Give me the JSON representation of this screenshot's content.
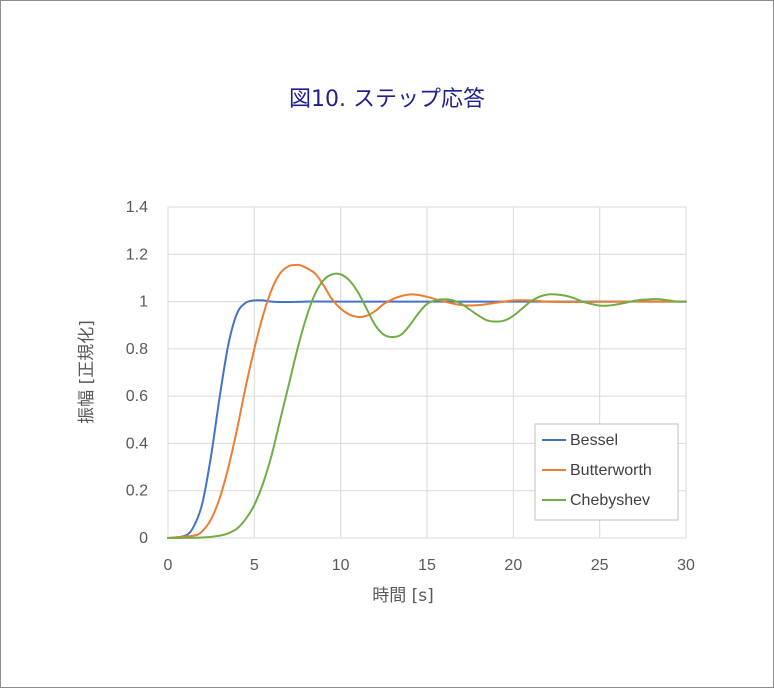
{
  "chart_data": {
    "type": "line",
    "title": "図10. ステップ応答",
    "xlabel": "時間 [s]",
    "ylabel": "振幅 [正規化]",
    "xlim": [
      0,
      30
    ],
    "ylim": [
      0,
      1.4
    ],
    "xticks": [
      0,
      5,
      10,
      15,
      20,
      25,
      30
    ],
    "yticks": [
      0,
      0.2,
      0.4,
      0.6,
      0.8,
      1,
      1.2,
      1.4
    ],
    "grid": true,
    "legend_position": "bottom-right",
    "series": [
      {
        "name": "Bessel",
        "color": "#4472c4",
        "x": [
          0,
          1,
          1.5,
          2,
          2.5,
          3,
          3.5,
          4,
          4.5,
          5,
          5.5,
          6,
          7,
          8,
          10,
          15,
          20,
          25,
          30
        ],
        "y": [
          0,
          0.01,
          0.05,
          0.15,
          0.35,
          0.6,
          0.82,
          0.95,
          0.995,
          1.005,
          1.005,
          1.0,
          0.998,
          1.0,
          1.0,
          1.0,
          1.0,
          1.0,
          1.0
        ]
      },
      {
        "name": "Butterworth",
        "color": "#ed7d31",
        "x": [
          0,
          1.5,
          2,
          2.5,
          3,
          3.5,
          4,
          4.5,
          5,
          5.5,
          6,
          6.5,
          7,
          7.5,
          7.8,
          8.5,
          9,
          9.5,
          10,
          10.5,
          11,
          11.5,
          12,
          12.5,
          13,
          13.5,
          14,
          14.5,
          15,
          15.5,
          16,
          17,
          18,
          19,
          20,
          21,
          22,
          24,
          26,
          28,
          30
        ],
        "y": [
          0,
          0.01,
          0.03,
          0.08,
          0.17,
          0.3,
          0.46,
          0.64,
          0.8,
          0.94,
          1.05,
          1.12,
          1.15,
          1.155,
          1.15,
          1.12,
          1.07,
          1.01,
          0.97,
          0.945,
          0.935,
          0.94,
          0.96,
          0.99,
          1.01,
          1.023,
          1.03,
          1.028,
          1.02,
          1.01,
          1.0,
          0.985,
          0.985,
          0.995,
          1.005,
          1.005,
          1.0,
          0.998,
          1.0,
          1.0,
          1.0
        ]
      },
      {
        "name": "Chebyshev",
        "color": "#70ad47",
        "x": [
          0,
          2,
          3,
          3.5,
          4,
          4.5,
          5,
          5.5,
          6,
          6.5,
          7,
          7.5,
          8,
          8.5,
          9,
          9.5,
          10,
          10.5,
          11,
          11.5,
          12,
          12.5,
          13,
          13.5,
          14,
          14.5,
          15,
          15.5,
          16,
          16.5,
          17,
          17.5,
          18,
          18.5,
          19,
          19.5,
          20,
          20.5,
          21,
          21.5,
          22,
          22.5,
          23,
          23.5,
          24,
          24.5,
          25,
          25.5,
          26,
          26.5,
          27,
          27.5,
          28,
          28.5,
          29,
          29.5,
          30
        ],
        "y": [
          0,
          0.002,
          0.01,
          0.02,
          0.04,
          0.08,
          0.14,
          0.23,
          0.35,
          0.5,
          0.65,
          0.8,
          0.93,
          1.03,
          1.09,
          1.115,
          1.115,
          1.09,
          1.04,
          0.97,
          0.9,
          0.86,
          0.85,
          0.86,
          0.9,
          0.95,
          0.99,
          1.005,
          1.01,
          1.005,
          0.99,
          0.965,
          0.94,
          0.92,
          0.915,
          0.92,
          0.94,
          0.97,
          1.0,
          1.02,
          1.03,
          1.03,
          1.025,
          1.015,
          1.0,
          0.99,
          0.983,
          0.983,
          0.988,
          0.995,
          1.003,
          1.008,
          1.01,
          1.01,
          1.005,
          1.0,
          1.0
        ]
      }
    ]
  }
}
